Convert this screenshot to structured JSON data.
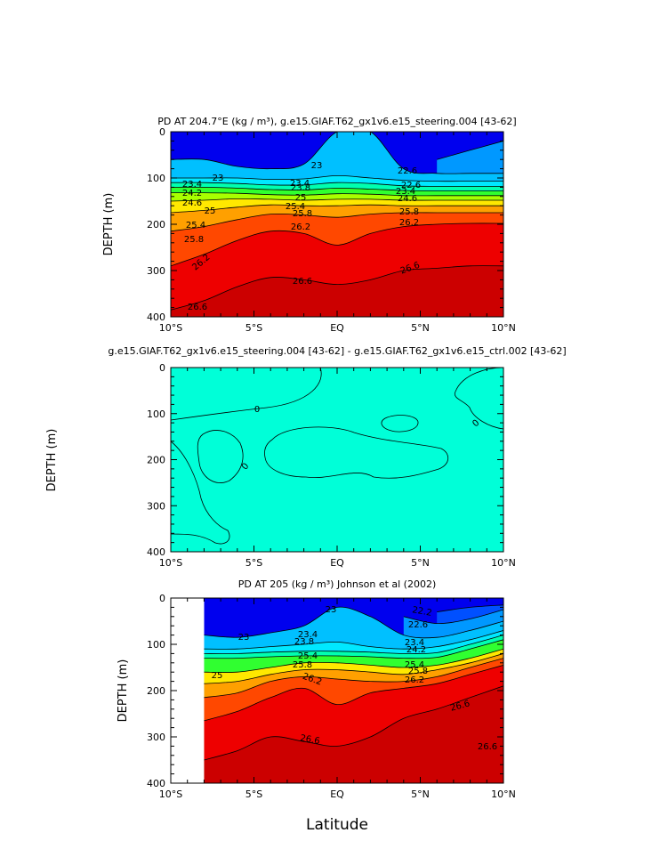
{
  "figure": {
    "x_axis_label": "Latitude",
    "x_tick_labels": [
      "10°S",
      "5°S",
      "EQ",
      "5°N",
      "10°N"
    ]
  },
  "chart_data": [
    {
      "type": "heatmap",
      "title": "PD AT 204.7°E (kg / m³), g.e15.GIAF.T62_gx1v6.e15_steering.004 [43-62]",
      "xlabel": "",
      "ylabel": "DEPTH (m)",
      "xlim": [
        -10,
        10
      ],
      "ylim": [
        400,
        0
      ],
      "y_ticks": [
        0,
        100,
        200,
        300,
        400
      ],
      "contour_labels": [
        "22.6",
        "23",
        "23",
        "23.4",
        "23.4",
        "23.8",
        "24.2",
        "24.6",
        "25",
        "25",
        "25.4",
        "25.4",
        "25.8",
        "25.8",
        "25.8",
        "26.2",
        "26.2",
        "26.2",
        "26.6",
        "26.6",
        "26.6",
        "22.6",
        "23.4",
        "24.6"
      ],
      "isopycnal_depths_m": {
        "22.6": [
          null,
          null,
          null,
          null,
          null,
          null,
          null,
          null,
          60,
          40,
          20
        ],
        "23": [
          60,
          60,
          75,
          80,
          70,
          0,
          0,
          80,
          90,
          90,
          90
        ],
        "23.4": [
          100,
          100,
          100,
          103,
          102,
          95,
          100,
          105,
          107,
          107,
          107
        ],
        "23.8": [
          110,
          110,
          112,
          115,
          115,
          110,
          112,
          117,
          118,
          118,
          118
        ],
        "24.2": [
          120,
          120,
          122,
          125,
          126,
          122,
          124,
          127,
          128,
          128,
          128
        ],
        "24.6": [
          132,
          132,
          133,
          136,
          137,
          134,
          135,
          138,
          138,
          138,
          138
        ],
        "25": [
          150,
          148,
          145,
          146,
          148,
          146,
          146,
          148,
          148,
          148,
          148
        ],
        "25.4": [
          175,
          170,
          163,
          158,
          160,
          160,
          158,
          160,
          160,
          160,
          160
        ],
        "25.8": [
          215,
          205,
          190,
          178,
          180,
          185,
          178,
          175,
          175,
          175,
          175
        ],
        "26.2": [
          290,
          265,
          235,
          215,
          220,
          245,
          220,
          205,
          200,
          198,
          198
        ],
        "26.6": [
          385,
          365,
          335,
          315,
          320,
          330,
          320,
          300,
          295,
          290,
          290
        ]
      },
      "colors": {
        "22.2": "#0000ee",
        "22.6": "#0050ff",
        "23": "#0098ff",
        "23.4": "#00c0ff",
        "23.8": "#00e8ff",
        "24.2": "#00ffb0",
        "24.6": "#30ff30",
        "25": "#a8ff00",
        "25.4": "#ffe800",
        "25.8": "#ffa000",
        "26.2": "#ff4800",
        "26.6": "#ee0000",
        "27": "#cc0000"
      }
    },
    {
      "type": "heatmap",
      "title": "g.e15.GIAF.T62_gx1v6.e15_steering.004 [43-62] - g.e15.GIAF.T62_gx1v6.e15_ctrl.002 [43-62]",
      "xlabel": "",
      "ylabel": "DEPTH (m)",
      "xlim": [
        -10,
        10
      ],
      "ylim": [
        400,
        0
      ],
      "y_ticks": [
        0,
        100,
        200,
        300,
        400
      ],
      "contour_labels": [
        "0",
        "0",
        "0"
      ],
      "colors": {
        "positive": "#30ee55",
        "zero": "#00ffd8",
        "negative": "#30ffff"
      }
    },
    {
      "type": "heatmap",
      "title": "PD AT 205 (kg / m³) Johnson et al (2002)",
      "xlabel": "Latitude",
      "ylabel": "DEPTH (m)",
      "xlim": [
        -10,
        10
      ],
      "ylim": [
        400,
        0
      ],
      "y_ticks": [
        0,
        100,
        200,
        300,
        400
      ],
      "contour_labels": [
        "22.2",
        "22.6",
        "23",
        "23",
        "23.4",
        "23.4",
        "23.8",
        "24.2",
        "25",
        "25.4",
        "25.4",
        "25.8",
        "25.8",
        "26.2",
        "26.2",
        "26.6",
        "26.6",
        "26.6"
      ],
      "isopycnal_depths_m": {
        "22.2": [
          null,
          null,
          null,
          null,
          null,
          null,
          null,
          null,
          30,
          20,
          15
        ],
        "22.6": [
          null,
          null,
          null,
          null,
          null,
          null,
          null,
          40,
          55,
          45,
          25
        ],
        "23": [
          null,
          80,
          85,
          75,
          60,
          20,
          40,
          80,
          85,
          70,
          50
        ],
        "23.4": [
          null,
          110,
          110,
          105,
          100,
          95,
          105,
          110,
          105,
          90,
          70
        ],
        "23.8": [
          null,
          120,
          120,
          117,
          115,
          115,
          117,
          120,
          118,
          100,
          80
        ],
        "24.2": [
          null,
          130,
          130,
          127,
          125,
          125,
          127,
          130,
          128,
          110,
          90
        ],
        "25": [
          null,
          160,
          160,
          150,
          140,
          140,
          145,
          150,
          145,
          130,
          110
        ],
        "25.4": [
          null,
          185,
          180,
          165,
          155,
          155,
          160,
          165,
          155,
          140,
          120
        ],
        "25.8": [
          null,
          215,
          205,
          180,
          170,
          175,
          180,
          180,
          170,
          150,
          130
        ],
        "26.2": [
          null,
          265,
          245,
          215,
          195,
          230,
          205,
          195,
          185,
          165,
          145
        ],
        "26.6": [
          null,
          350,
          330,
          300,
          310,
          320,
          300,
          260,
          240,
          215,
          190
        ]
      },
      "missing_below_lat": -8
    }
  ]
}
